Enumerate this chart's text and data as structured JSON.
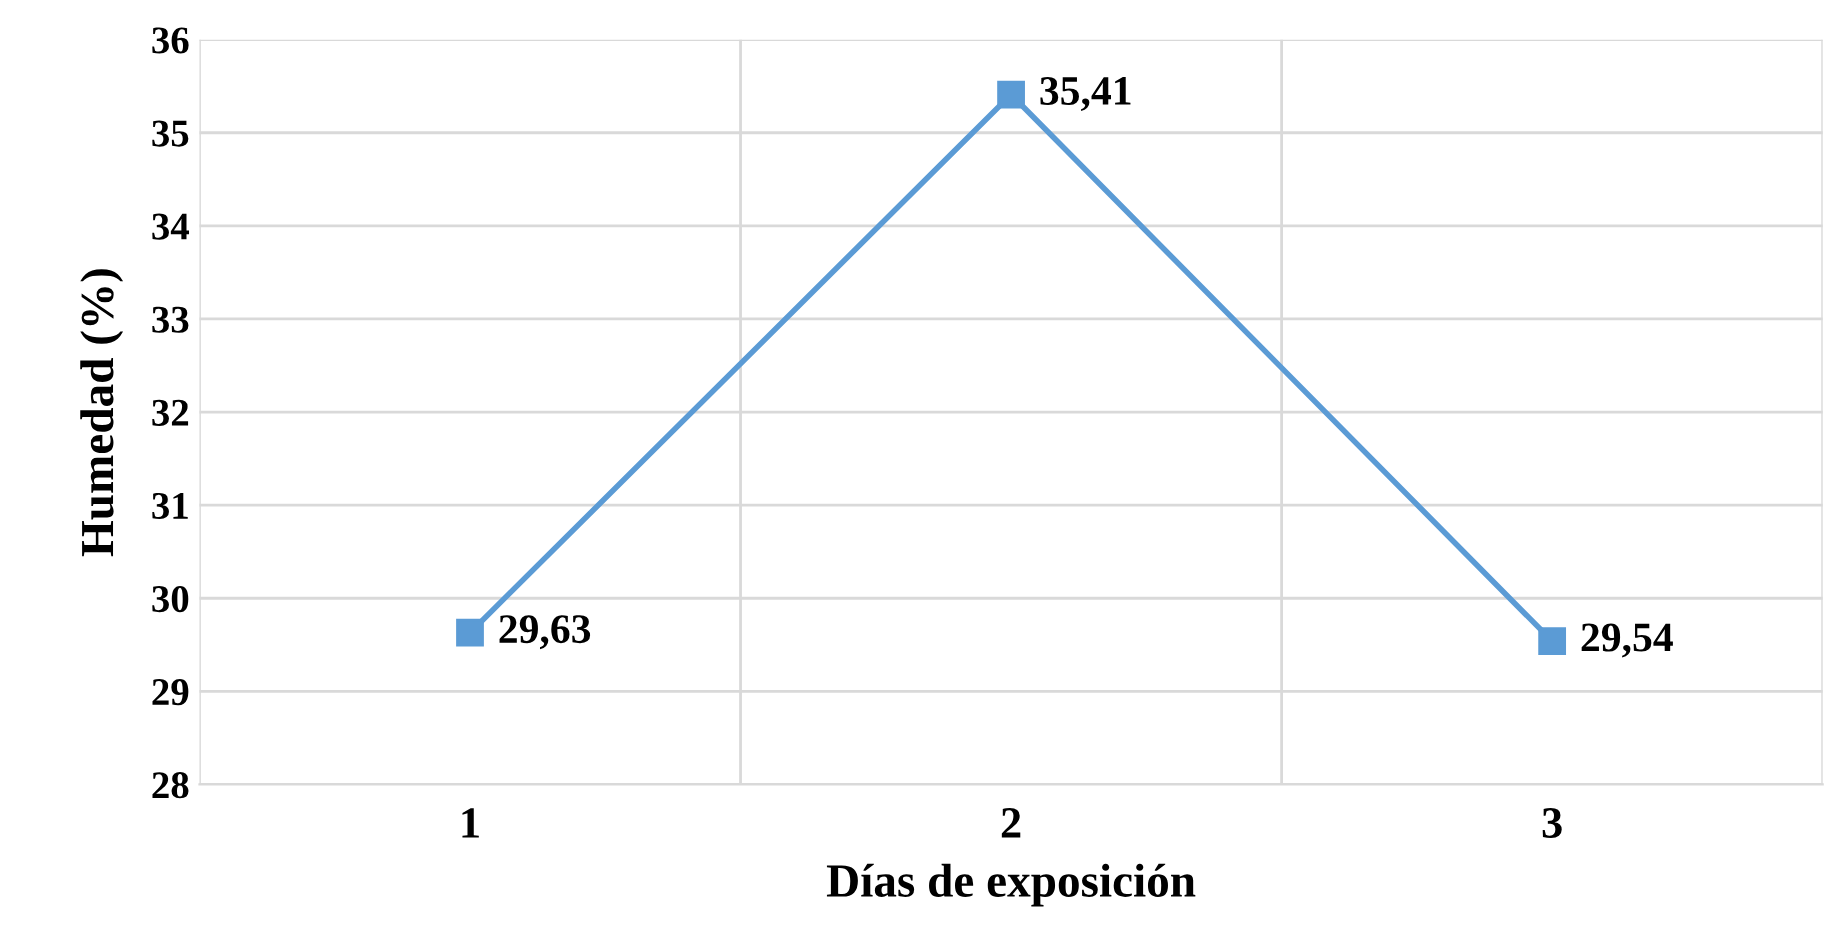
{
  "chart_data": {
    "type": "line",
    "xlabel": "Días de exposición",
    "ylabel": "Humedad (%)",
    "categories": [
      "1",
      "2",
      "3"
    ],
    "series": [
      {
        "color": "#5b9bd5",
        "values": [
          29.63,
          35.41,
          29.54
        ],
        "value_labels": [
          "29,63",
          "35,41",
          "29,54"
        ]
      }
    ],
    "ylim": [
      28,
      36
    ],
    "yticks": [
      28,
      29,
      30,
      31,
      32,
      33,
      34,
      35,
      36
    ],
    "grid": true,
    "marker": "square",
    "line_style": "solid",
    "legend": false
  }
}
